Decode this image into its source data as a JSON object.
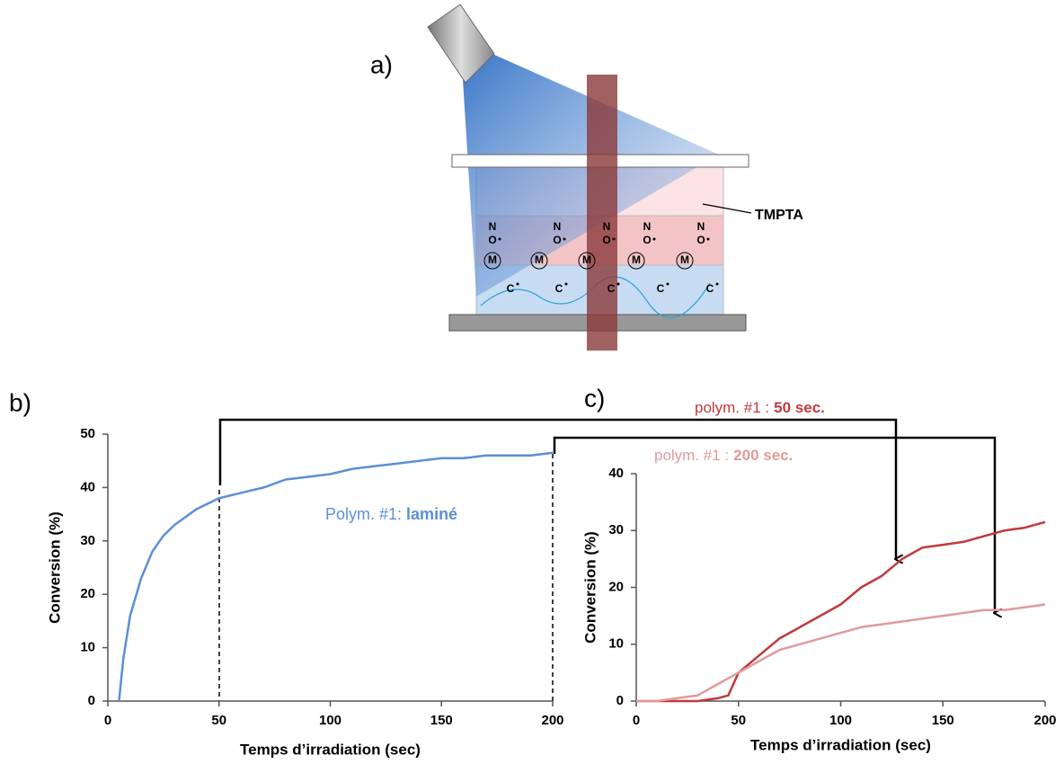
{
  "diagram": {
    "panel": "a)",
    "label": "TMPTA",
    "nitroxide": [
      "N",
      "O"
    ],
    "monomer": "M",
    "radical": "C"
  },
  "chart_data": [
    {
      "type": "line",
      "panel": "b)",
      "xlabel": "Temps d’irradiation (sec)",
      "ylabel": "Conversion (%)",
      "xlim": [
        0,
        200
      ],
      "xticks": [
        0,
        50,
        100,
        150,
        200
      ],
      "ylim": [
        0,
        50
      ],
      "yticks": [
        0,
        10,
        20,
        30,
        40,
        50
      ],
      "annotation": [
        "Polym. #1:",
        "laminé"
      ],
      "annotation_color": "#5b8fd6",
      "x": [
        5,
        7,
        10,
        15,
        20,
        25,
        30,
        35,
        40,
        45,
        50,
        60,
        70,
        80,
        90,
        100,
        110,
        120,
        130,
        140,
        150,
        160,
        170,
        180,
        190,
        200
      ],
      "series": [
        {
          "color": "#5b8fd6",
          "values": [
            0,
            8,
            16,
            23,
            28,
            31,
            33,
            34.5,
            36,
            37,
            38,
            39,
            40,
            41.5,
            42,
            42.5,
            43.5,
            44,
            44.5,
            45,
            45.5,
            45.5,
            46,
            46,
            46,
            46.5
          ]
        }
      ]
    },
    {
      "type": "line",
      "panel": "c)",
      "xlabel": "Temps d’irradiation (sec)",
      "ylabel": "Conversion (%)",
      "xlim": [
        0,
        200
      ],
      "xticks": [
        0,
        50,
        100,
        150,
        200
      ],
      "ylim": [
        0,
        40
      ],
      "yticks": [
        0,
        10,
        20,
        30,
        40
      ],
      "x": [
        0,
        10,
        20,
        30,
        40,
        45,
        50,
        60,
        70,
        80,
        90,
        100,
        110,
        120,
        130,
        140,
        150,
        160,
        170,
        180,
        190,
        200
      ],
      "series": [
        {
          "name": [
            "polym. #1 :",
            "50 sec."
          ],
          "color": "#c0393b",
          "values": [
            0,
            0,
            0,
            0,
            0.5,
            1,
            5,
            8,
            11,
            13,
            15,
            17,
            20,
            22,
            25,
            27,
            27.5,
            28,
            29,
            30,
            30.5,
            31.5
          ]
        },
        {
          "name": [
            "polym. #1 :",
            "200 sec."
          ],
          "color": "#e29a9a",
          "values": [
            0,
            0,
            0.5,
            1,
            3,
            4,
            5,
            7,
            9,
            10,
            11,
            12,
            13,
            13.5,
            14,
            14.5,
            15,
            15.5,
            16,
            16,
            16.5,
            17
          ]
        }
      ]
    }
  ]
}
